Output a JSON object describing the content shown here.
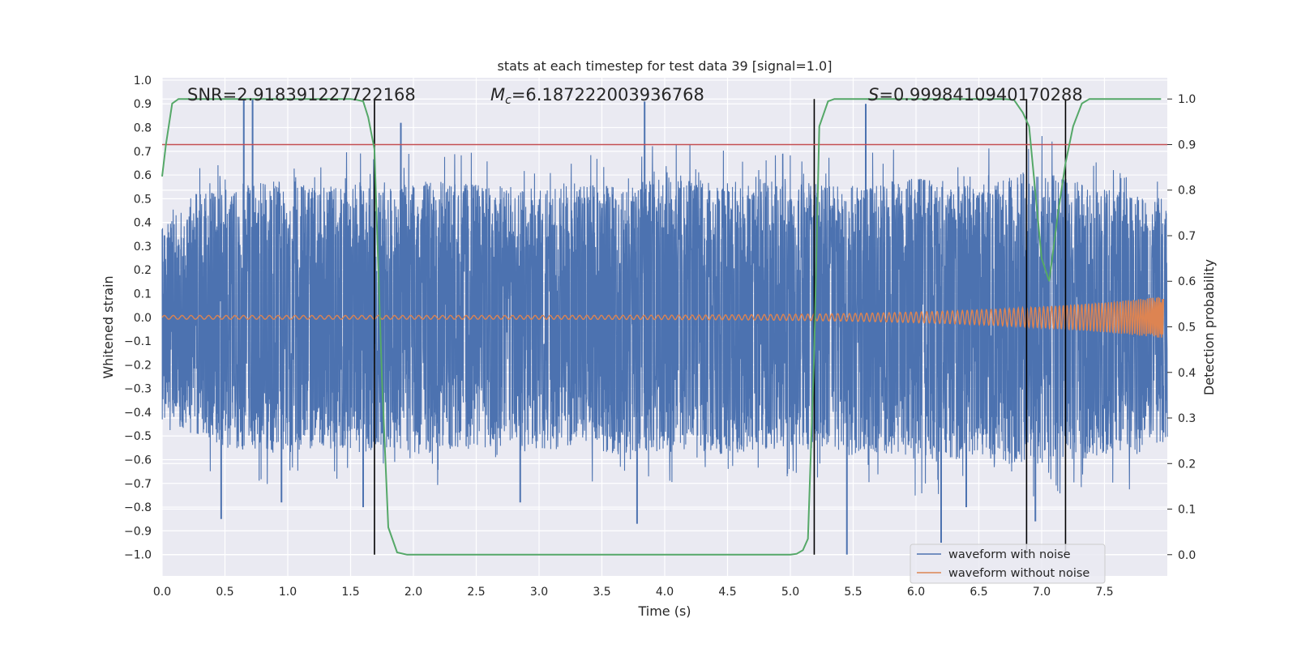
{
  "chart_data": {
    "type": "line",
    "title": "stats at each timestep for test data 39 [signal=1.0]",
    "xlabel": "Time (s)",
    "ylabel": "Whitened strain",
    "y2label": "Detection probability",
    "xlim": [
      0.0,
      8.0
    ],
    "ylim": [
      -1.09,
      1.01
    ],
    "y2lim": [
      -0.0466,
      1.0466
    ],
    "x_ticks": [
      "0.0",
      "0.5",
      "1.0",
      "1.5",
      "2.0",
      "2.5",
      "3.0",
      "3.5",
      "4.0",
      "4.5",
      "5.0",
      "5.5",
      "6.0",
      "6.5",
      "7.0",
      "7.5"
    ],
    "y_ticks": [
      "1.0",
      "0.9",
      "0.8",
      "0.7",
      "0.6",
      "0.5",
      "0.4",
      "0.3",
      "0.2",
      "0.1",
      "0.0",
      "−0.1",
      "−0.2",
      "−0.3",
      "−0.4",
      "−0.5",
      "−0.6",
      "−0.7",
      "−0.8",
      "−0.9",
      "−1.0"
    ],
    "y2_ticks": [
      "1.0",
      "0.9",
      "0.8",
      "0.7",
      "0.6",
      "0.5",
      "0.4",
      "0.3",
      "0.2",
      "0.1",
      "0.0"
    ],
    "annotations": {
      "snr": "SNR=2.918391227722168",
      "mc_symbol": "M",
      "mc_sub": "c",
      "mc_value": "=6.187222003936768",
      "s_symbol": "S",
      "s_value": "=0.9998410940170288"
    },
    "threshold": 0.9,
    "vertical_lines": [
      1.69,
      5.19,
      6.88,
      7.19
    ],
    "series": [
      {
        "name": "waveform with noise",
        "color": "#4c72b0",
        "kind": "noise",
        "envelope_upper": [
          0.38,
          0.52,
          0.55,
          0.58,
          0.57,
          0.55,
          0.56,
          0.54,
          0.58,
          0.57,
          0.56,
          0.55,
          0.55,
          0.57,
          0.56,
          0.58,
          0.6,
          0.57,
          0.56,
          0.58,
          0.57,
          0.55,
          0.57,
          0.6,
          0.58,
          0.56,
          0.6,
          0.62,
          0.58,
          0.55,
          0.52,
          0.5
        ],
        "envelope_lower": [
          -0.42,
          -0.5,
          -0.55,
          -0.58,
          -0.56,
          -0.55,
          -0.57,
          -0.55,
          -0.58,
          -0.56,
          -0.55,
          -0.57,
          -0.56,
          -0.55,
          -0.58,
          -0.57,
          -0.55,
          -0.58,
          -0.57,
          -0.56,
          -0.58,
          -0.6,
          -0.57,
          -0.6,
          -0.62,
          -0.6,
          -0.62,
          -0.62,
          -0.6,
          -0.6,
          -0.58,
          -0.52
        ],
        "spikes": [
          [
            0.65,
            0.92
          ],
          [
            0.72,
            0.92
          ],
          [
            3.84,
            0.91
          ],
          [
            5.6,
            0.9
          ],
          [
            1.9,
            0.82
          ],
          [
            0.47,
            -0.85
          ],
          [
            3.78,
            -0.87
          ],
          [
            5.45,
            -1.0
          ],
          [
            6.2,
            -0.95
          ],
          [
            1.6,
            -0.8
          ],
          [
            6.95,
            -0.86
          ],
          [
            2.85,
            -0.78
          ],
          [
            0.95,
            -0.78
          ],
          [
            6.4,
            -0.8
          ]
        ]
      },
      {
        "name": "waveform without noise",
        "color": "#dd8452",
        "kind": "chirp",
        "t_merge": 8.0,
        "amp_start": 0.008,
        "amp_end": 0.09
      },
      {
        "name": "Detection probability",
        "color": "#55a868",
        "axis": "right",
        "x": [
          0.0,
          0.03,
          0.08,
          0.13,
          0.2,
          0.3,
          0.5,
          0.8,
          1.0,
          1.2,
          1.4,
          1.5,
          1.55,
          1.6,
          1.64,
          1.69,
          1.75,
          1.8,
          1.87,
          1.95,
          2.1,
          2.5,
          3.0,
          3.5,
          4.0,
          4.5,
          5.0,
          5.05,
          5.1,
          5.14,
          5.19,
          5.23,
          5.3,
          5.35,
          5.45,
          5.6,
          5.9,
          6.2,
          6.5,
          6.7,
          6.78,
          6.85,
          6.9,
          7.0,
          7.06,
          7.13,
          7.19,
          7.25,
          7.32,
          7.38,
          7.5,
          7.7,
          7.9,
          7.95
        ],
        "y": [
          0.83,
          0.9,
          0.99,
          1.0,
          1.0,
          1.0,
          1.0,
          1.0,
          1.0,
          1.0,
          1.0,
          1.0,
          0.998,
          0.995,
          0.96,
          0.89,
          0.38,
          0.06,
          0.005,
          0.0,
          0.0,
          0.0,
          0.0,
          0.0,
          0.0,
          0.0,
          0.0,
          0.002,
          0.01,
          0.035,
          0.45,
          0.94,
          0.995,
          1.0,
          1.0,
          1.0,
          1.0,
          1.0,
          1.0,
          1.0,
          0.998,
          0.97,
          0.94,
          0.65,
          0.6,
          0.75,
          0.86,
          0.94,
          0.99,
          1.0,
          1.0,
          1.0,
          1.0,
          1.0
        ]
      },
      {
        "name": "threshold",
        "color": "#c44e52",
        "axis": "right",
        "value": 0.9
      }
    ],
    "legend": {
      "position": "lower-right",
      "entries": [
        "waveform with noise",
        "waveform without noise"
      ]
    }
  }
}
